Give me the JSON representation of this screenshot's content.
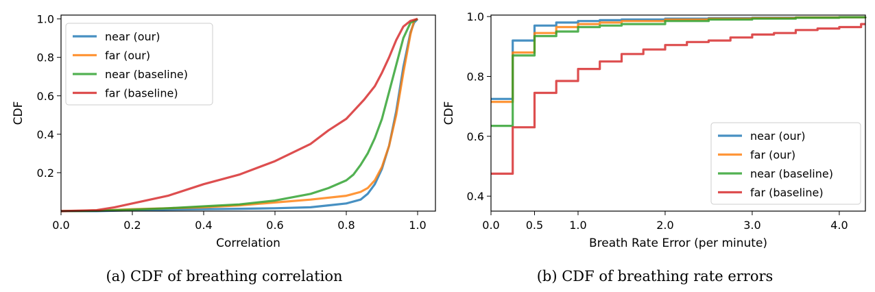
{
  "chart_data": [
    {
      "type": "line",
      "subtitle": "(a) CDF of breathing correlation",
      "xlabel": "Correlation",
      "ylabel": "CDF",
      "xlim": [
        0.0,
        1.05
      ],
      "ylim": [
        0.0,
        1.02
      ],
      "xticks": [
        "0.0",
        "0.2",
        "0.4",
        "0.6",
        "0.8",
        "1.0"
      ],
      "yticks": [
        "0.2",
        "0.4",
        "0.6",
        "0.8",
        "1.0"
      ],
      "legend_position": "top-left",
      "series": [
        {
          "name": "near (our)",
          "color": "#1f77b4",
          "x": [
            0.0,
            0.1,
            0.2,
            0.3,
            0.4,
            0.5,
            0.6,
            0.7,
            0.75,
            0.8,
            0.84,
            0.86,
            0.88,
            0.9,
            0.92,
            0.94,
            0.96,
            0.98,
            0.99,
            1.0
          ],
          "y": [
            0.0,
            0.0,
            0.005,
            0.008,
            0.01,
            0.012,
            0.015,
            0.02,
            0.03,
            0.04,
            0.06,
            0.09,
            0.14,
            0.22,
            0.34,
            0.52,
            0.75,
            0.93,
            0.98,
            1.0
          ]
        },
        {
          "name": "far (our)",
          "color": "#ff7f0e",
          "x": [
            0.0,
            0.1,
            0.2,
            0.3,
            0.4,
            0.5,
            0.6,
            0.7,
            0.8,
            0.84,
            0.86,
            0.88,
            0.9,
            0.92,
            0.94,
            0.96,
            0.98,
            0.99,
            1.0
          ],
          "y": [
            0.0,
            0.002,
            0.01,
            0.015,
            0.02,
            0.03,
            0.045,
            0.06,
            0.08,
            0.1,
            0.12,
            0.16,
            0.23,
            0.34,
            0.5,
            0.72,
            0.92,
            0.99,
            1.0
          ]
        },
        {
          "name": "near (baseline)",
          "color": "#2ca02c",
          "x": [
            0.0,
            0.1,
            0.2,
            0.3,
            0.4,
            0.5,
            0.6,
            0.7,
            0.75,
            0.8,
            0.82,
            0.84,
            0.86,
            0.88,
            0.9,
            0.92,
            0.94,
            0.96,
            0.98,
            1.0
          ],
          "y": [
            0.0,
            0.002,
            0.008,
            0.015,
            0.025,
            0.035,
            0.055,
            0.09,
            0.12,
            0.16,
            0.19,
            0.24,
            0.3,
            0.38,
            0.48,
            0.62,
            0.76,
            0.9,
            0.98,
            1.0
          ]
        },
        {
          "name": "far (baseline)",
          "color": "#d62728",
          "x": [
            0.0,
            0.1,
            0.15,
            0.2,
            0.3,
            0.4,
            0.5,
            0.6,
            0.7,
            0.75,
            0.8,
            0.85,
            0.88,
            0.9,
            0.92,
            0.94,
            0.96,
            0.98,
            1.0
          ],
          "y": [
            0.0,
            0.005,
            0.02,
            0.04,
            0.08,
            0.14,
            0.19,
            0.26,
            0.35,
            0.42,
            0.48,
            0.58,
            0.65,
            0.72,
            0.8,
            0.89,
            0.96,
            0.99,
            1.0
          ]
        }
      ]
    },
    {
      "type": "line",
      "subtitle": "(b) CDF of breathing rate errors",
      "xlabel": "Breath Rate Error (per minute)",
      "ylabel": "CDF",
      "xlim": [
        0.0,
        4.3
      ],
      "ylim": [
        0.35,
        1.005
      ],
      "xticks": [
        "0.0",
        "0.5",
        "1.0",
        "2.0",
        "3.0",
        "4.0"
      ],
      "yticks": [
        "0.4",
        "0.6",
        "0.8",
        "1.0"
      ],
      "legend_position": "bottom-right",
      "series": [
        {
          "name": "near (our)",
          "color": "#1f77b4",
          "x": [
            0.0,
            0.25,
            0.5,
            0.75,
            1.0,
            1.25,
            1.5,
            2.0,
            2.5,
            3.0,
            3.5,
            4.0,
            4.3
          ],
          "y": [
            0.725,
            0.92,
            0.97,
            0.98,
            0.985,
            0.988,
            0.99,
            0.993,
            0.995,
            0.996,
            0.997,
            0.998,
            0.999
          ]
        },
        {
          "name": "far (our)",
          "color": "#ff7f0e",
          "x": [
            0.0,
            0.25,
            0.5,
            0.75,
            1.0,
            1.25,
            1.5,
            2.0,
            2.5,
            3.0,
            3.5,
            4.0,
            4.3
          ],
          "y": [
            0.715,
            0.88,
            0.945,
            0.965,
            0.975,
            0.98,
            0.985,
            0.99,
            0.993,
            0.995,
            0.997,
            0.998,
            0.999
          ]
        },
        {
          "name": "near (baseline)",
          "color": "#2ca02c",
          "x": [
            0.0,
            0.25,
            0.5,
            0.75,
            1.0,
            1.25,
            1.5,
            2.0,
            2.5,
            3.0,
            3.5,
            4.0,
            4.3
          ],
          "y": [
            0.635,
            0.87,
            0.935,
            0.95,
            0.965,
            0.97,
            0.975,
            0.985,
            0.99,
            0.993,
            0.996,
            0.998,
            0.999
          ]
        },
        {
          "name": "far (baseline)",
          "color": "#d62728",
          "x": [
            0.0,
            0.25,
            0.5,
            0.75,
            1.0,
            1.25,
            1.5,
            1.75,
            2.0,
            2.25,
            2.5,
            2.75,
            3.0,
            3.25,
            3.5,
            3.75,
            4.0,
            4.25,
            4.3
          ],
          "y": [
            0.475,
            0.63,
            0.745,
            0.785,
            0.825,
            0.85,
            0.875,
            0.89,
            0.905,
            0.915,
            0.92,
            0.93,
            0.94,
            0.945,
            0.955,
            0.96,
            0.965,
            0.975,
            0.975
          ]
        }
      ]
    }
  ]
}
